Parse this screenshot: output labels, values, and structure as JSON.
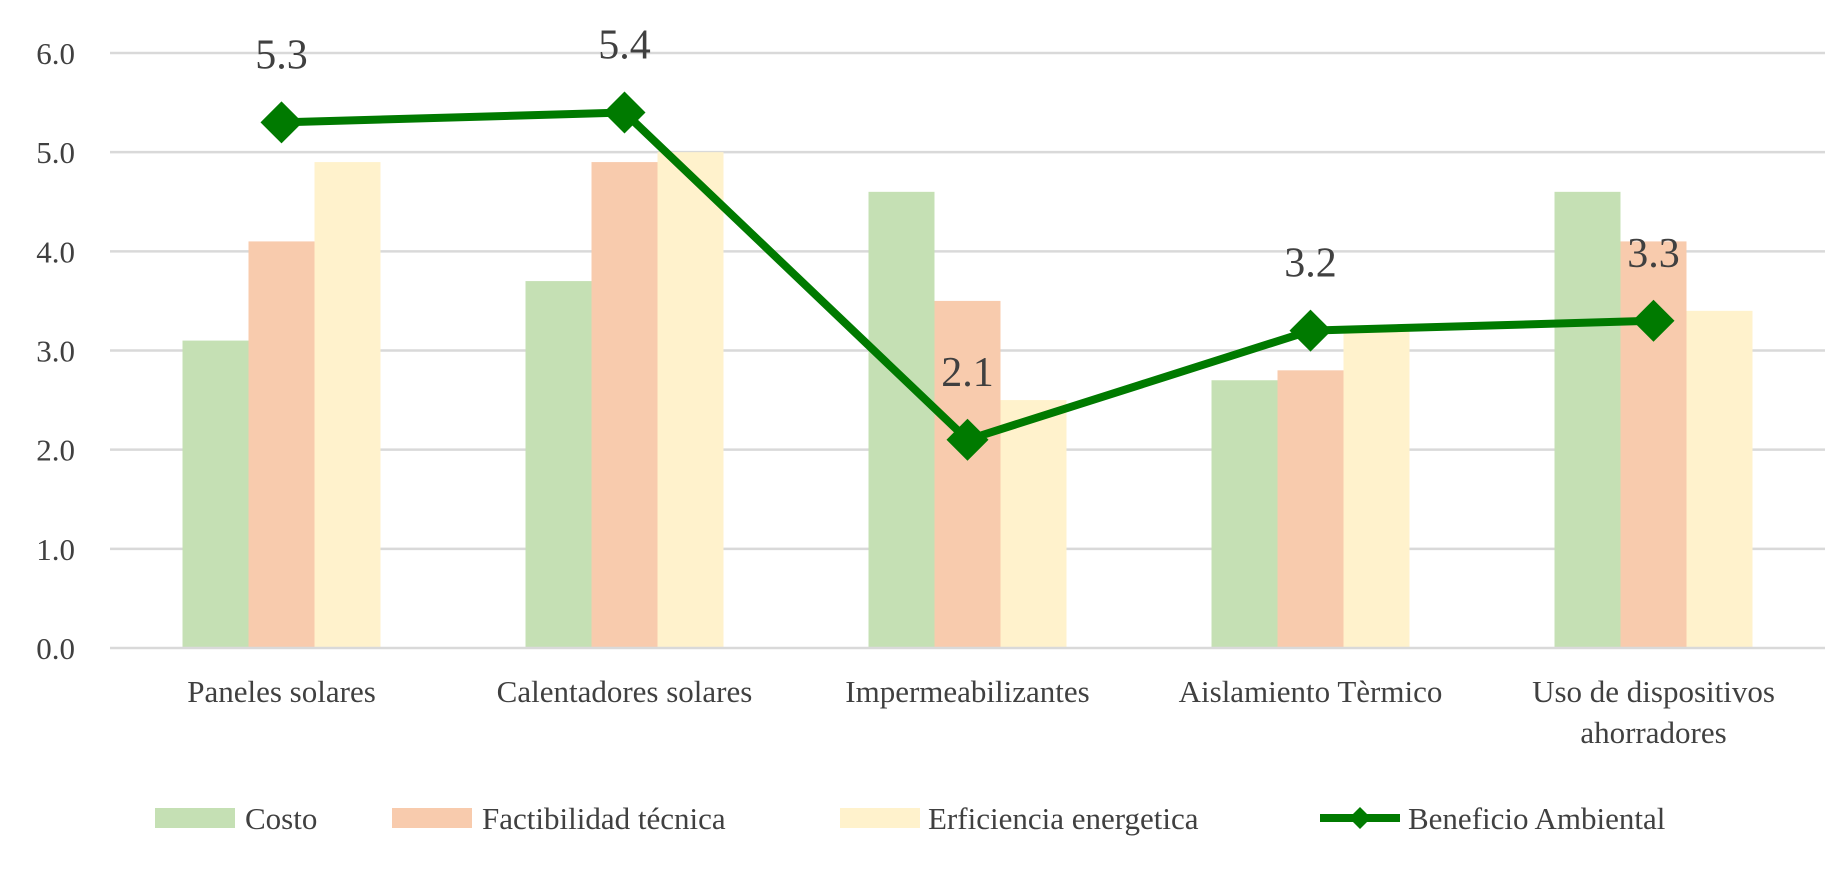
{
  "chart_data": {
    "type": "bar",
    "title": "",
    "xlabel": "",
    "ylabel": "",
    "ylim": [
      0,
      6
    ],
    "yticks": [
      "0.0",
      "1.0",
      "2.0",
      "3.0",
      "4.0",
      "5.0",
      "6.0"
    ],
    "grid": true,
    "legend_position": "bottom",
    "categories": [
      [
        "Paneles solares"
      ],
      [
        "Calentadores solares"
      ],
      [
        "Impermeabilizantes"
      ],
      [
        "Aislamiento Tèrmico"
      ],
      [
        "Uso de dispositivos",
        "ahorradores"
      ]
    ],
    "series": [
      {
        "name": "Costo",
        "type": "bar",
        "color": "#c5e0b4",
        "values": [
          3.1,
          3.7,
          4.6,
          2.7,
          4.6
        ]
      },
      {
        "name": "Factibilidad técnica",
        "type": "bar",
        "color": "#f8cbad",
        "values": [
          4.1,
          4.9,
          3.5,
          2.8,
          4.1
        ]
      },
      {
        "name": "Erficiencia energetica",
        "type": "bar",
        "color": "#fff2cc",
        "values": [
          4.9,
          5.0,
          2.5,
          3.2,
          3.4
        ]
      },
      {
        "name": "Beneficio Ambiental",
        "type": "line",
        "marker": "diamond",
        "color": "#007a00",
        "values": [
          5.3,
          5.4,
          2.1,
          3.2,
          3.3
        ],
        "labels": [
          "5.3",
          "5.4",
          "2.1",
          "3.2",
          "3.3"
        ]
      }
    ]
  }
}
